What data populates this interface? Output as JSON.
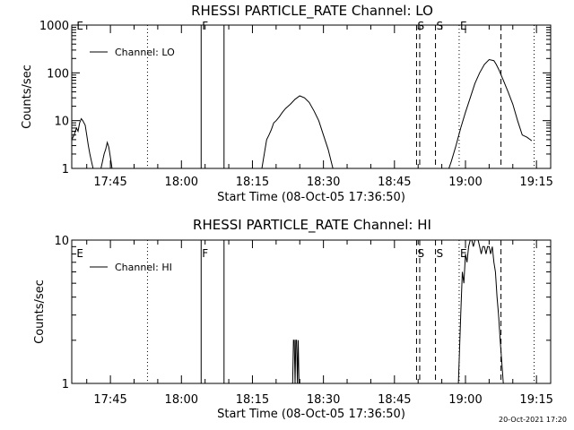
{
  "chart_data": [
    {
      "type": "line",
      "title": "RHESSI PARTICLE_RATE Channel: LO",
      "xlabel": "Start Time (08-Oct-05 17:36:50)",
      "ylabel": "Counts/sec",
      "yscale": "log",
      "xlim": [
        "17:36:50",
        "19:18:00"
      ],
      "ylim": [
        1,
        1000
      ],
      "x_ticks": [
        "17:45",
        "18:00",
        "18:15",
        "18:30",
        "18:45",
        "19:00",
        "19:15"
      ],
      "y_ticks": [
        "1",
        "10",
        "100",
        "1000"
      ],
      "legend": {
        "position": "top-left",
        "entries": [
          "Channel: LO"
        ]
      },
      "grid": false,
      "markers": [
        {
          "label": "E",
          "time": "17:37:40",
          "style": "none"
        },
        {
          "label": "",
          "time": "17:52:50",
          "style": "dotted"
        },
        {
          "label": "F",
          "time": "18:04:10",
          "style": "solid"
        },
        {
          "label": "",
          "time": "18:09:00",
          "style": "solid"
        },
        {
          "label": "S",
          "time": "18:49:40",
          "style": "dashed"
        },
        {
          "label": "",
          "time": "18:50:20",
          "style": "dashed"
        },
        {
          "label": "S",
          "time": "18:53:40",
          "style": "dashed"
        },
        {
          "label": "E",
          "time": "18:58:40",
          "style": "dotted"
        },
        {
          "label": "",
          "time": "19:07:30",
          "style": "dashed"
        },
        {
          "label": "",
          "time": "19:14:30",
          "style": "dotted"
        }
      ],
      "series": [
        {
          "name": "Channel: LO",
          "segments": [
            {
              "x": [
                "17:36:50",
                "17:37:20",
                "17:37:50",
                "17:38:10",
                "17:38:30",
                "17:38:50",
                "17:39:10",
                "17:39:40",
                "17:40:00",
                "17:40:20",
                "17:40:40",
                "17:41:00",
                "17:41:20"
              ],
              "y": [
                4,
                5,
                7,
                6,
                9,
                11,
                10,
                8,
                5,
                3,
                2,
                1.4,
                1
              ]
            },
            {
              "x": [
                "17:43:00",
                "17:43:20",
                "17:43:40",
                "17:44:00",
                "17:44:20",
                "17:44:40",
                "17:45:00",
                "17:45:20"
              ],
              "y": [
                1,
                1.4,
                2,
                2.5,
                3.5,
                2.8,
                1.7,
                1
              ]
            },
            {
              "x": [
                "18:17:00",
                "18:17:20",
                "18:17:40",
                "18:18:00",
                "18:18:30",
                "18:19:00",
                "18:19:30",
                "18:20:00",
                "18:20:40",
                "18:21:20",
                "18:22:00",
                "18:23:00",
                "18:24:00",
                "18:25:00",
                "18:26:00",
                "18:27:00",
                "18:28:00",
                "18:29:00",
                "18:30:00",
                "18:31:00",
                "18:32:00"
              ],
              "y": [
                1,
                1.6,
                2.5,
                4,
                5,
                6.5,
                9,
                10,
                12,
                15,
                18,
                22,
                28,
                33,
                30,
                24,
                16,
                10,
                5,
                2.5,
                1
              ]
            },
            {
              "x": [
                "18:56:30",
                "18:57:00",
                "18:58:00",
                "18:59:00",
                "19:00:00",
                "19:01:00",
                "19:02:00",
                "19:03:00",
                "19:04:00",
                "19:05:00",
                "19:06:00",
                "19:06:30",
                "19:07:00",
                "19:08:00",
                "19:09:00",
                "19:10:00",
                "19:11:00",
                "19:12:00",
                "19:13:00",
                "19:14:00"
              ],
              "y": [
                1,
                1.4,
                3,
                7,
                15,
                30,
                60,
                100,
                150,
                190,
                180,
                150,
                120,
                70,
                40,
                22,
                10,
                5,
                4.5,
                3.8
              ]
            }
          ]
        }
      ]
    },
    {
      "type": "line",
      "title": "RHESSI PARTICLE_RATE Channel: HI",
      "xlabel": "Start Time (08-Oct-05 17:36:50)",
      "ylabel": "Counts/sec",
      "yscale": "log",
      "xlim": [
        "17:36:50",
        "19:18:00"
      ],
      "ylim": [
        1,
        10
      ],
      "x_ticks": [
        "17:45",
        "18:00",
        "18:15",
        "18:30",
        "18:45",
        "19:00",
        "19:15"
      ],
      "y_ticks": [
        "1",
        "10"
      ],
      "legend": {
        "position": "top-left",
        "entries": [
          "Channel: HI"
        ]
      },
      "grid": false,
      "markers": [
        {
          "label": "E",
          "time": "17:37:40",
          "style": "none"
        },
        {
          "label": "",
          "time": "17:52:50",
          "style": "dotted"
        },
        {
          "label": "F",
          "time": "18:04:10",
          "style": "solid"
        },
        {
          "label": "",
          "time": "18:09:00",
          "style": "solid"
        },
        {
          "label": "S",
          "time": "18:49:40",
          "style": "dashed"
        },
        {
          "label": "",
          "time": "18:50:20",
          "style": "dashed"
        },
        {
          "label": "S",
          "time": "18:53:40",
          "style": "dashed"
        },
        {
          "label": "E",
          "time": "18:58:40",
          "style": "dotted"
        },
        {
          "label": "",
          "time": "19:07:30",
          "style": "dashed"
        },
        {
          "label": "",
          "time": "19:14:30",
          "style": "dotted"
        }
      ],
      "series": [
        {
          "name": "Channel: HI",
          "segments": [
            {
              "x": [
                "18:23:30",
                "18:23:40",
                "18:23:50",
                "18:24:00",
                "18:24:10",
                "18:24:20",
                "18:24:30",
                "18:24:40",
                "18:24:50"
              ],
              "y": [
                1,
                2,
                2,
                1,
                2,
                2,
                1,
                2,
                1
              ]
            },
            {
              "x": [
                "18:58:30",
                "18:59:00",
                "18:59:20",
                "18:59:40",
                "19:00:00",
                "19:00:20",
                "19:00:40",
                "19:01:00",
                "19:01:20",
                "19:01:40",
                "19:02:00",
                "19:02:20",
                "19:02:40",
                "19:03:00",
                "19:03:20",
                "19:03:40",
                "19:04:00",
                "19:04:20",
                "19:04:40",
                "19:05:00",
                "19:05:20",
                "19:05:40",
                "19:06:00",
                "19:06:20",
                "19:06:40",
                "19:07:00",
                "19:07:20",
                "19:07:40",
                "19:08:00"
              ],
              "y": [
                1,
                3,
                6,
                5,
                8,
                7,
                9,
                10,
                10,
                9,
                10,
                10,
                10,
                9,
                8,
                9,
                9,
                8,
                9,
                9,
                8,
                9,
                7,
                6,
                4,
                3,
                2,
                1.4,
                1
              ]
            }
          ]
        }
      ]
    }
  ],
  "footer": {
    "date_stamp": "20-Oct-2021 17:20"
  }
}
